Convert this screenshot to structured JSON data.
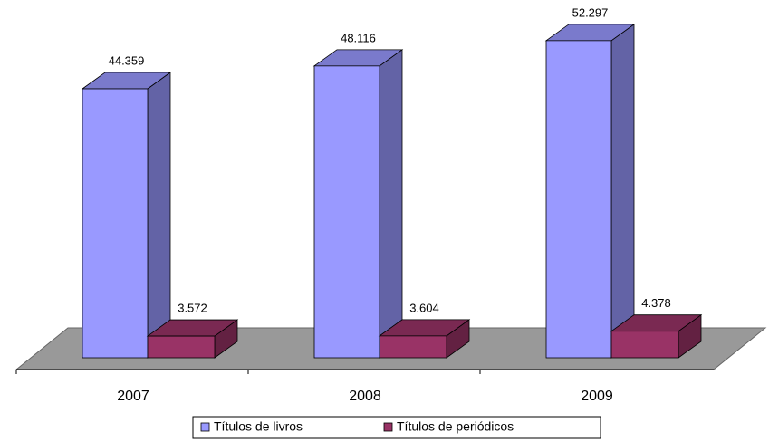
{
  "chart_data": {
    "type": "bar3d",
    "categories": [
      "2007",
      "2008",
      "2009"
    ],
    "series": [
      {
        "name": "Títulos de livros",
        "color": "#9999ff",
        "values": [
          44359,
          48116,
          52297
        ],
        "value_labels": [
          "44.359",
          "48.116",
          "52.297"
        ]
      },
      {
        "name": "Títulos de periódicos",
        "color": "#993366",
        "values": [
          3572,
          3604,
          4378
        ],
        "value_labels": [
          "3.572",
          "3.604",
          "4.378"
        ]
      }
    ],
    "legend": "bottom"
  }
}
